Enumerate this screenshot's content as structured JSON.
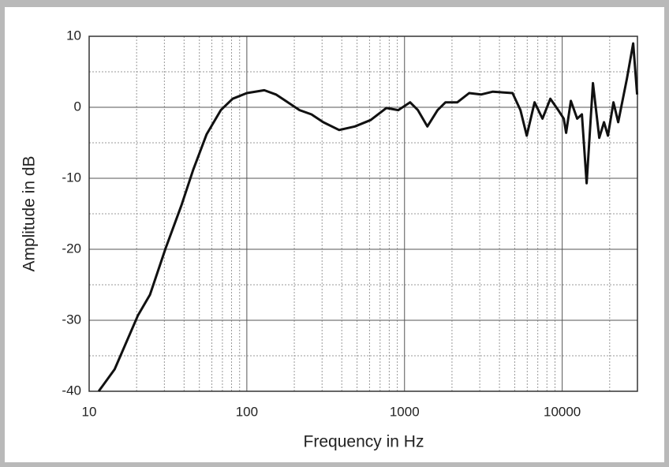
{
  "chart_data": {
    "type": "line",
    "xlabel": "Frequency in Hz",
    "ylabel": "Amplitude in dB",
    "xscale": "log",
    "xlim": [
      10,
      30000
    ],
    "ylim": [
      -40,
      10
    ],
    "xticks": [
      10,
      100,
      1000,
      10000
    ],
    "yticks": [
      -40,
      -30,
      -20,
      -10,
      0,
      10
    ],
    "grid": true,
    "series": [
      {
        "color": "#111111",
        "x": [
          11.5,
          14.5,
          20.4,
          24.3,
          30.5,
          38.5,
          45.7,
          55.6,
          68.4,
          81.3,
          100,
          129,
          153,
          182,
          216,
          257,
          305,
          385,
          484,
          610,
          767,
          912,
          1084,
          1216,
          1396,
          1622,
          1820,
          2163,
          2570,
          3055,
          3631,
          4842,
          5433,
          5957,
          6683,
          7499,
          8414,
          9441,
          10233,
          10593,
          11350,
          12445,
          13335,
          14289,
          15668,
          17179,
          18408,
          19498,
          21135,
          22646,
          25704,
          28184,
          29854
        ],
        "values": [
          -40,
          -36.9,
          -29.3,
          -26.4,
          -19.9,
          -13.8,
          -8.8,
          -3.8,
          -0.4,
          1.2,
          2.0,
          2.4,
          1.8,
          0.7,
          -0.4,
          -1.0,
          -2.1,
          -3.2,
          -2.7,
          -1.8,
          -0.1,
          -0.4,
          0.7,
          -0.4,
          -2.7,
          -0.4,
          0.7,
          0.7,
          2.0,
          1.8,
          2.2,
          2.0,
          -0.4,
          -4.0,
          0.7,
          -1.6,
          1.2,
          -0.4,
          -1.6,
          -3.6,
          0.9,
          -1.6,
          -1.0,
          -10.7,
          3.4,
          -4.3,
          -2.1,
          -4.0,
          0.7,
          -2.1,
          4.0,
          9.0,
          1.8
        ]
      }
    ]
  }
}
